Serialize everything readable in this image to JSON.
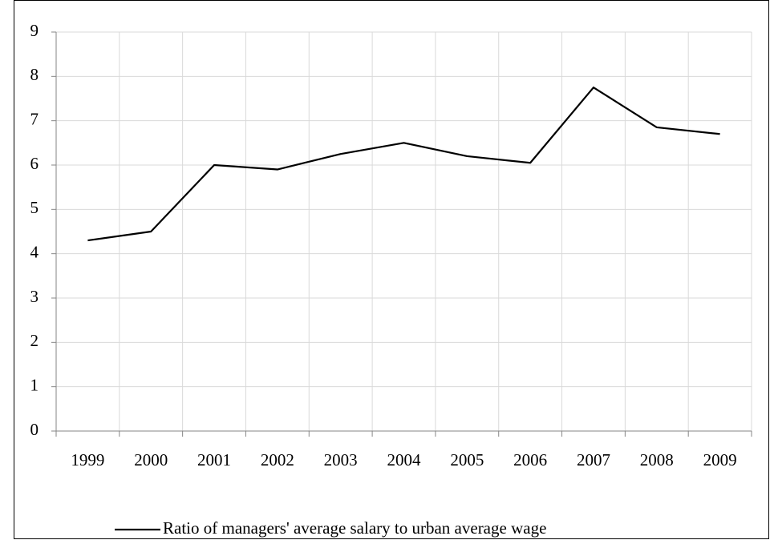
{
  "chart_data": {
    "type": "line",
    "categories": [
      "1999",
      "2000",
      "2001",
      "2002",
      "2003",
      "2004",
      "2005",
      "2006",
      "2007",
      "2008",
      "2009"
    ],
    "series": [
      {
        "name": "Ratio of managers' average salary to urban average wage",
        "color": "#000000",
        "values": [
          4.3,
          4.5,
          6.0,
          5.9,
          6.25,
          6.5,
          6.2,
          6.05,
          7.75,
          6.85,
          6.7
        ]
      }
    ],
    "ylim": [
      0,
      9
    ],
    "yticks": [
      0,
      1,
      2,
      3,
      4,
      5,
      6,
      7,
      8,
      9
    ],
    "grid": true,
    "legend": "bottom"
  }
}
